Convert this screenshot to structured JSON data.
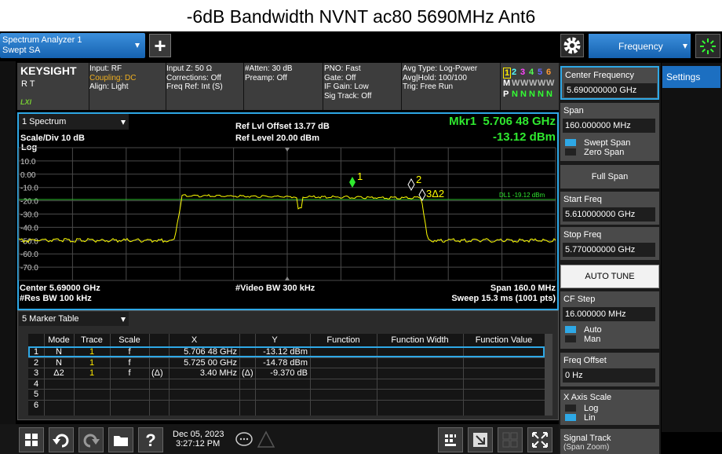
{
  "title": "-6dB Bandwidth NVNT ac80 5690MHz Ant6",
  "toolbar": {
    "instrument": "Spectrum Analyzer 1",
    "mode": "Swept SA",
    "menu": "Frequency"
  },
  "status": {
    "brand": "KEYSIGHT",
    "rt": "R T",
    "lxi": "LXI",
    "col1": [
      "Input: RF",
      "Coupling: DC",
      "Align: Light"
    ],
    "col2": [
      "Input Z: 50 Ω",
      "Corrections: Off",
      "Freq Ref: Int (S)"
    ],
    "col3": [
      "#Atten: 30 dB",
      "Preamp: Off"
    ],
    "col4": [
      "PNO: Fast",
      "Gate: Off",
      "IF Gain: Low",
      "Sig Track: Off"
    ],
    "col5": [
      "Avg Type: Log-Power",
      "Avg|Hold: 100/100",
      "Trig: Free Run"
    ],
    "traces": [
      [
        "1",
        "2",
        "3",
        "4",
        "5",
        "6"
      ],
      [
        "M",
        "W",
        "W",
        "W",
        "W",
        "W"
      ],
      [
        "P",
        "N",
        "N",
        "N",
        "N",
        "N"
      ]
    ]
  },
  "trace_window": {
    "name": "1 Spectrum",
    "scale": "Scale/Div 10 dB",
    "log": "Log",
    "ref_offset": "Ref Lvl Offset 13.77 dB",
    "ref_level": "Ref Level 20.00 dBm",
    "marker_freq": "Mkr1  5.706 48 GHz",
    "marker_level": "-13.12 dBm",
    "y_labels": [
      "10.0",
      "0.00",
      "-10.0",
      "-20.0",
      "-30.0",
      "-40.0",
      "-50.0",
      "-60.0",
      "-70.0"
    ],
    "markers": [
      "1",
      "2",
      "3Δ2"
    ],
    "display_line": "DL1 -19.12 dBm",
    "center": "Center 5.69000 GHz",
    "res_bw": "#Res BW 100 kHz",
    "video_bw": "#Video BW 300 kHz",
    "span": "Span 160.0 MHz",
    "sweep": "Sweep 15.3 ms (1001 pts)"
  },
  "marker_table": {
    "name": "5 Marker Table",
    "headers": [
      "Mode",
      "Trace",
      "Scale",
      "X",
      "Y",
      "Function",
      "Function Width",
      "Function Value"
    ],
    "rows": [
      {
        "n": "1",
        "mode": "N",
        "trace": "1",
        "scale": "f",
        "x": "5.706 48 GHz",
        "y": "-13.12 dBm"
      },
      {
        "n": "2",
        "mode": "N",
        "trace": "1",
        "scale": "f",
        "x": "5.725 00 GHz",
        "y": "-14.78 dBm"
      },
      {
        "n": "3",
        "mode": "Δ2",
        "trace": "1",
        "scale": "f",
        "x_rel": "(Δ)",
        "x": "3.40 MHz",
        "y_rel": "(Δ)",
        "y": "-9.370 dB"
      },
      {
        "n": "4"
      },
      {
        "n": "5"
      },
      {
        "n": "6"
      }
    ]
  },
  "settings_tab": "Settings",
  "softkeys": {
    "center_freq": {
      "label": "Center Frequency",
      "value": "5.690000000 GHz"
    },
    "span": {
      "label": "Span",
      "value": "160.000000 MHz"
    },
    "span_mode": [
      "Swept Span",
      "Zero Span"
    ],
    "full_span": "Full Span",
    "start_freq": {
      "label": "Start Freq",
      "value": "5.610000000 GHz"
    },
    "stop_freq": {
      "label": "Stop Freq",
      "value": "5.770000000 GHz"
    },
    "auto_tune": "AUTO TUNE",
    "cf_step": {
      "label": "CF Step",
      "value": "16.000000 MHz"
    },
    "cf_mode": [
      "Auto",
      "Man"
    ],
    "freq_offset": {
      "label": "Freq Offset",
      "value": "0 Hz"
    },
    "x_axis": {
      "label": "X Axis Scale",
      "options": [
        "Log",
        "Lin"
      ]
    },
    "signal_track": [
      "Signal Track",
      "(Span Zoom)"
    ]
  },
  "taskbar": {
    "date": "Dec 05, 2023",
    "time": "3:27:12 PM"
  }
}
